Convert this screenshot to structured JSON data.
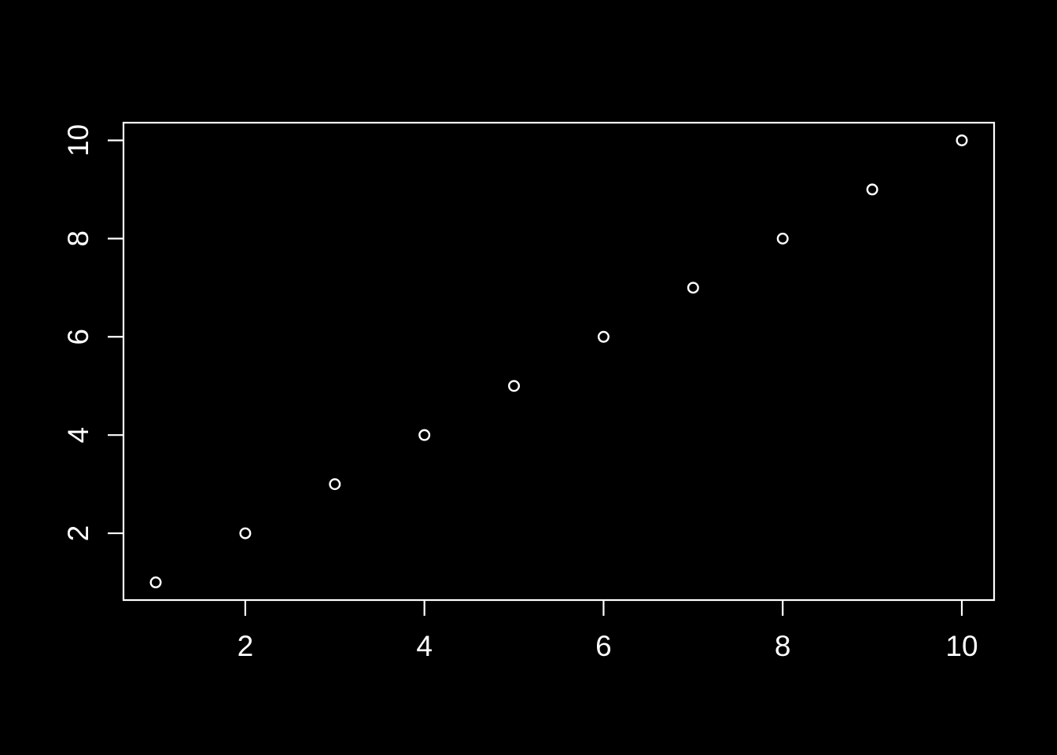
{
  "chart_data": {
    "type": "scatter",
    "title": "",
    "xlabel": "",
    "ylabel": "",
    "x": [
      1,
      2,
      3,
      4,
      5,
      6,
      7,
      8,
      9,
      10
    ],
    "y": [
      1,
      2,
      3,
      4,
      5,
      6,
      7,
      8,
      9,
      10
    ],
    "x_ticks": [
      2,
      4,
      6,
      8,
      10
    ],
    "x_tick_labels": [
      "2",
      "4",
      "6",
      "8",
      "10"
    ],
    "y_ticks": [
      2,
      4,
      6,
      8,
      10
    ],
    "y_tick_labels": [
      "2",
      "4",
      "6",
      "8",
      "10"
    ],
    "xlim": [
      0.64,
      10.36
    ],
    "ylim": [
      0.64,
      10.36
    ],
    "grid": "off",
    "legend": "none",
    "marker": "open-circle",
    "y_tick_label_rotation": -90,
    "colors": {
      "background": "#000000",
      "foreground": "#ffffff"
    }
  }
}
